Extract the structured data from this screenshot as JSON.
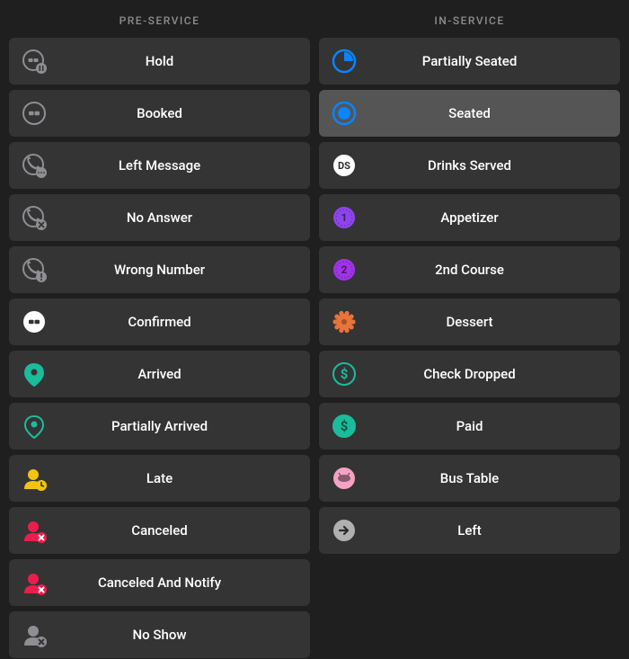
{
  "colors": {
    "page_bg": "#1f1f1f",
    "item_bg": "#343434",
    "item_bg_selected": "#555555",
    "header_text": "#8e8e93",
    "label_text": "#ffffff",
    "icon_gray": "#8e8e93",
    "icon_white": "#ffffff",
    "teal": "#1abc9c",
    "yellow": "#f1c40f",
    "red": "#ea1e4c",
    "blue": "#0a84ff",
    "purple": "#8e44ec",
    "purple2": "#a033e8",
    "orange": "#e8743b",
    "green": "#1abc9c",
    "pink": "#f4a2c5",
    "light_gray": "#b0b0b0",
    "dark_text": "#2b2b2b"
  },
  "columns": [
    {
      "header": "PRE-SERVICE",
      "items": [
        {
          "id": "hold",
          "label": "Hold",
          "icon": "hold",
          "selected": false
        },
        {
          "id": "booked",
          "label": "Booked",
          "icon": "booked",
          "selected": false
        },
        {
          "id": "left-message",
          "label": "Left Message",
          "icon": "left-message",
          "selected": false
        },
        {
          "id": "no-answer",
          "label": "No Answer",
          "icon": "no-answer",
          "selected": false
        },
        {
          "id": "wrong-number",
          "label": "Wrong Number",
          "icon": "wrong-number",
          "selected": false
        },
        {
          "id": "confirmed",
          "label": "Confirmed",
          "icon": "confirmed",
          "selected": false
        },
        {
          "id": "arrived",
          "label": "Arrived",
          "icon": "arrived",
          "selected": false
        },
        {
          "id": "partially-arrived",
          "label": "Partially Arrived",
          "icon": "partially-arrived",
          "selected": false
        },
        {
          "id": "late",
          "label": "Late",
          "icon": "late",
          "selected": false
        },
        {
          "id": "canceled",
          "label": "Canceled",
          "icon": "canceled",
          "selected": false
        },
        {
          "id": "canceled-notify",
          "label": "Canceled And Notify",
          "icon": "canceled-notify",
          "selected": false
        },
        {
          "id": "no-show",
          "label": "No Show",
          "icon": "no-show",
          "selected": false
        }
      ]
    },
    {
      "header": "IN-SERVICE",
      "items": [
        {
          "id": "partially-seated",
          "label": "Partially Seated",
          "icon": "partially-seated",
          "selected": false
        },
        {
          "id": "seated",
          "label": "Seated",
          "icon": "seated",
          "selected": true
        },
        {
          "id": "drinks-served",
          "label": "Drinks Served",
          "icon": "drinks-served",
          "selected": false
        },
        {
          "id": "appetizer",
          "label": "Appetizer",
          "icon": "appetizer",
          "selected": false
        },
        {
          "id": "2nd-course",
          "label": "2nd Course",
          "icon": "second-course",
          "selected": false
        },
        {
          "id": "dessert",
          "label": "Dessert",
          "icon": "dessert",
          "selected": false
        },
        {
          "id": "check-dropped",
          "label": "Check Dropped",
          "icon": "check-dropped",
          "selected": false
        },
        {
          "id": "paid",
          "label": "Paid",
          "icon": "paid",
          "selected": false
        },
        {
          "id": "bus-table",
          "label": "Bus Table",
          "icon": "bus-table",
          "selected": false
        },
        {
          "id": "left",
          "label": "Left",
          "icon": "left",
          "selected": false
        }
      ]
    }
  ]
}
